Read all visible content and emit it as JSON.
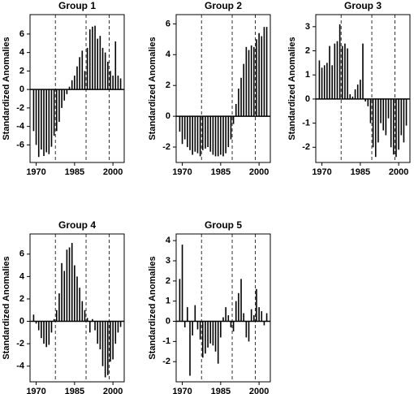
{
  "chart_data": [
    {
      "type": "bar",
      "title": "Group 1",
      "y_label": "Standardized Anomalies",
      "x": [
        1969,
        1970,
        1971,
        1972,
        1973,
        1974,
        1975,
        1976,
        1977,
        1978,
        1979,
        1980,
        1981,
        1982,
        1983,
        1984,
        1985,
        1986,
        1987,
        1988,
        1989,
        1990,
        1991,
        1992,
        1993,
        1994,
        1995,
        1996,
        1997,
        1998,
        1999,
        2000,
        2001,
        2002,
        2003
      ],
      "values": [
        -4.5,
        -6,
        -7.3,
        -6.5,
        -7.2,
        -6.8,
        -7,
        -6.2,
        -5,
        -4.5,
        -3.5,
        -2,
        -1.2,
        -0.5,
        0.3,
        1,
        1.5,
        2.5,
        3.5,
        4.2,
        2,
        4.5,
        6.5,
        6.8,
        6.9,
        5.5,
        5.8,
        4.5,
        4,
        3,
        2,
        1.5,
        5.2,
        1.5,
        1.2
      ],
      "xlim": [
        1967.6,
        2004.4
      ],
      "ylim": [
        -7.9,
        8.1
      ],
      "xticks": [
        1970,
        1985,
        2000
      ],
      "yticks": [
        -6,
        -4,
        -2,
        0,
        2,
        4,
        6
      ],
      "vlines": [
        1977.5,
        1989.5,
        1998.5
      ],
      "color": "#000000"
    },
    {
      "type": "bar",
      "title": "Group 2",
      "y_label": "Standardized Anomalies",
      "x": [
        1969,
        1970,
        1971,
        1972,
        1973,
        1974,
        1975,
        1976,
        1977,
        1978,
        1979,
        1980,
        1981,
        1982,
        1983,
        1984,
        1985,
        1986,
        1987,
        1988,
        1989,
        1990,
        1991,
        1992,
        1993,
        1994,
        1995,
        1996,
        1997,
        1998,
        1999,
        2000,
        2001,
        2002,
        2003
      ],
      "values": [
        -1,
        -1.8,
        -1.5,
        -2,
        -2.2,
        -2.5,
        -2.3,
        -2.4,
        -2.6,
        -2.2,
        -2.1,
        -2,
        -2.3,
        -2.5,
        -2.6,
        -2.6,
        -2.5,
        -2.6,
        -2.4,
        -2,
        -1.5,
        -0.5,
        0.8,
        1.8,
        2.5,
        3.4,
        4.5,
        4.3,
        4.6,
        4.5,
        5,
        5.4,
        5.2,
        5.8,
        5.8
      ],
      "xlim": [
        1967.6,
        2004.4
      ],
      "ylim": [
        -3.0,
        6.6
      ],
      "xticks": [
        1970,
        1985,
        2000
      ],
      "yticks": [
        -2,
        0,
        2,
        4,
        6
      ],
      "vlines": [
        1977.5,
        1989.5,
        1998.5
      ],
      "color": "#000000"
    },
    {
      "type": "bar",
      "title": "Group 3",
      "y_label": "Standardized Anomalies",
      "x": [
        1969,
        1970,
        1971,
        1972,
        1973,
        1974,
        1975,
        1976,
        1977,
        1978,
        1979,
        1980,
        1981,
        1982,
        1983,
        1984,
        1985,
        1986,
        1987,
        1988,
        1989,
        1990,
        1991,
        1992,
        1993,
        1994,
        1995,
        1996,
        1997,
        1998,
        1999,
        2000,
        2001,
        2002,
        2003
      ],
      "values": [
        1.6,
        1.3,
        1.4,
        1.5,
        2.2,
        1.4,
        2.3,
        2.4,
        3.1,
        2.2,
        2.3,
        2.1,
        0.2,
        0.1,
        0.4,
        0.6,
        0.8,
        2.3,
        -0.1,
        -0.3,
        -1,
        -2,
        -2.4,
        -1.8,
        -1,
        -1.3,
        -1.5,
        -0.8,
        -2,
        -2.3,
        -2.4,
        -2.1,
        -1.5,
        -1.8,
        -1.1
      ],
      "xlim": [
        1967.6,
        2004.4
      ],
      "ylim": [
        -2.63,
        3.5
      ],
      "xticks": [
        1970,
        1985,
        2000
      ],
      "yticks": [
        -2,
        -1,
        0,
        1,
        2,
        3
      ],
      "vlines": [
        1977.5,
        1989.5,
        1998.5
      ],
      "color": "#000000"
    },
    {
      "type": "bar",
      "title": "Group 4",
      "y_label": "Standardized Anomalies",
      "x": [
        1969,
        1970,
        1971,
        1972,
        1973,
        1974,
        1975,
        1976,
        1977,
        1978,
        1979,
        1980,
        1981,
        1982,
        1983,
        1984,
        1985,
        1986,
        1987,
        1988,
        1989,
        1990,
        1991,
        1992,
        1993,
        1994,
        1995,
        1996,
        1997,
        1998,
        1999,
        2000,
        2001,
        2002,
        2003
      ],
      "values": [
        0.6,
        -0.2,
        -0.8,
        -1.5,
        -2,
        -2.3,
        -2.1,
        -1,
        0.2,
        1,
        2.5,
        5.2,
        4.5,
        6.4,
        6.6,
        7,
        5,
        4,
        3,
        1.8,
        1,
        0.3,
        -1,
        0.2,
        -0.8,
        -2,
        -2.5,
        -4,
        -5,
        -4.8,
        -3.6,
        -3.4,
        -2,
        -1,
        -0.5
      ],
      "xlim": [
        1967.6,
        2004.4
      ],
      "ylim": [
        -5.4,
        7.8
      ],
      "xticks": [
        1970,
        1985,
        2000
      ],
      "yticks": [
        -4,
        -2,
        0,
        2,
        4,
        6
      ],
      "vlines": [
        1977.5,
        1989.5,
        1998.5
      ],
      "color": "#000000"
    },
    {
      "type": "bar",
      "title": "Group 5",
      "y_label": "Standardized Anomalies",
      "x": [
        1969,
        1970,
        1971,
        1972,
        1973,
        1974,
        1975,
        1976,
        1977,
        1978,
        1979,
        1980,
        1981,
        1982,
        1983,
        1984,
        1985,
        1986,
        1987,
        1988,
        1989,
        1990,
        1991,
        1992,
        1993,
        1994,
        1995,
        1996,
        1997,
        1998,
        1999,
        2000,
        2001,
        2002,
        2003
      ],
      "values": [
        2.1,
        3.8,
        -0.3,
        0.7,
        -2.7,
        -0.7,
        0.8,
        -0.4,
        -0.9,
        -1.8,
        -1.6,
        -1.3,
        -1.1,
        -1.2,
        -1.5,
        -2.1,
        -0.8,
        0.2,
        0.7,
        0.3,
        -0.3,
        -0.5,
        1,
        1.4,
        2.1,
        0.4,
        -0.8,
        -1,
        0.6,
        0.3,
        1.6,
        0.7,
        0.5,
        -0.2,
        0.4
      ],
      "xlim": [
        1967.6,
        2004.4
      ],
      "ylim": [
        -3.0,
        4.33
      ],
      "xticks": [
        1970,
        1985,
        2000
      ],
      "yticks": [
        -2,
        -1,
        0,
        1,
        2,
        3,
        4
      ],
      "vlines": [
        1977.5,
        1989.5,
        1998.5
      ],
      "color": "#000000"
    }
  ]
}
